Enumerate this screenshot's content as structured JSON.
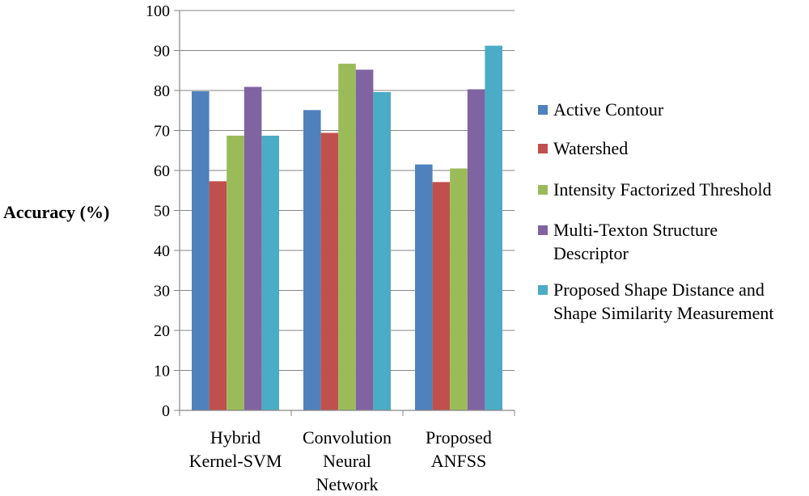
{
  "chart_data": {
    "type": "bar",
    "ylabel": "Accuracy (%)",
    "xlabel": "",
    "title": "",
    "ylim": [
      0,
      100
    ],
    "yticks": [
      "0",
      "10",
      "20",
      "30",
      "40",
      "50",
      "60",
      "70",
      "80",
      "90",
      "100"
    ],
    "grid": true,
    "legend_position": "right",
    "categories": [
      [
        "Hybrid",
        "Kernel-SVM"
      ],
      [
        "Convolution",
        "Neural",
        "Network"
      ],
      [
        "Proposed",
        "ANFSS"
      ]
    ],
    "series": [
      {
        "name": [
          "Active Contour"
        ],
        "color": "#4F81BD",
        "values": [
          79.8,
          75.1,
          61.5
        ]
      },
      {
        "name": [
          "Watershed"
        ],
        "color": "#C0504D",
        "values": [
          57.3,
          69.4,
          57.1
        ]
      },
      {
        "name": [
          "Intensity Factorized Threshold"
        ],
        "color": "#9BBB59",
        "values": [
          68.7,
          86.7,
          60.5
        ]
      },
      {
        "name": [
          "Multi-Texton Structure",
          "Descriptor"
        ],
        "color": "#8064A2",
        "values": [
          80.9,
          85.2,
          80.3
        ]
      },
      {
        "name": [
          "Proposed Shape Distance and",
          "Shape Similarity Measurement"
        ],
        "color": "#4BACC6",
        "values": [
          68.7,
          79.6,
          91.2
        ]
      }
    ]
  }
}
